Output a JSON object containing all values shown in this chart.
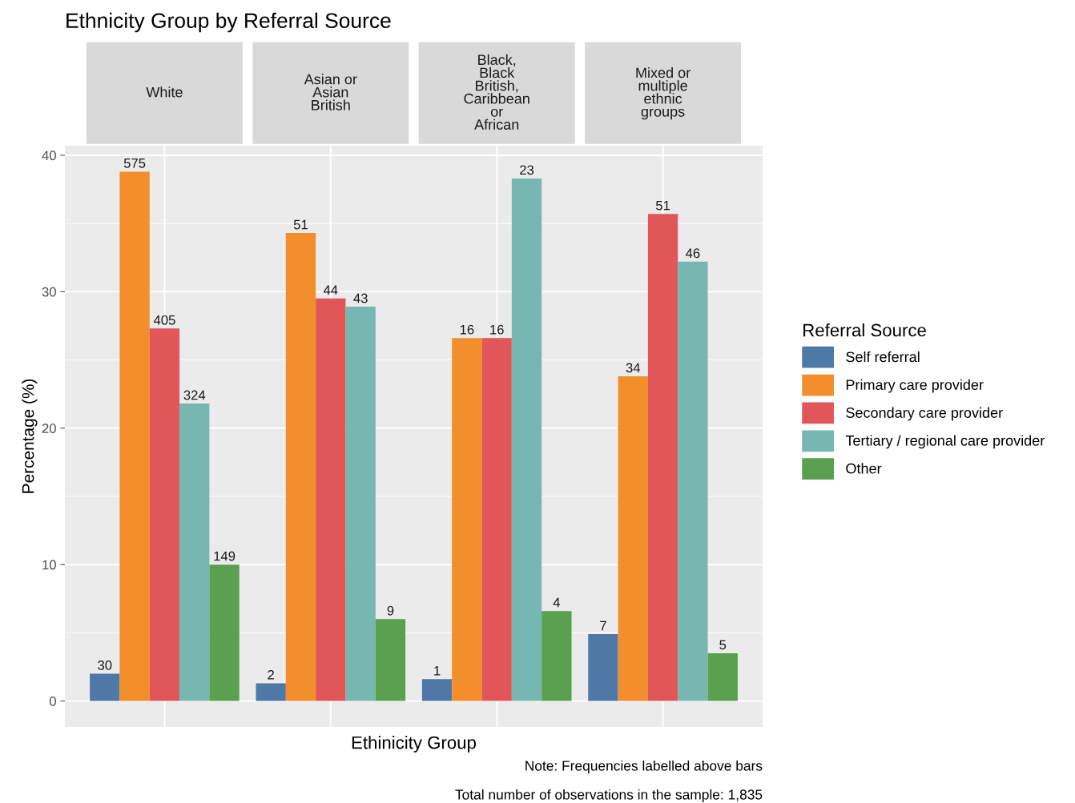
{
  "chart_data": {
    "type": "bar",
    "title": "Ethnicity Group by Referral Source",
    "xlabel": "Ethinicity Group",
    "ylabel": "Percentage (%)",
    "legend_title": "Referral Source",
    "legend": "right",
    "categories": [
      "White",
      "Asian or\nAsian\nBritish",
      "Black,\nBlack\nBritish,\nCaribbean\nor\nAfrican",
      "Mixed or\nmultiple\nethnic\ngroups"
    ],
    "ylim": [
      -1.9,
      40.7
    ],
    "yticks": [
      0,
      10,
      20,
      30,
      40
    ],
    "grid": true,
    "series": [
      {
        "name": "Self referral",
        "color": "#4e79a7",
        "values": [
          2.0,
          1.3,
          1.6,
          4.9
        ]
      },
      {
        "name": "Primary care provider",
        "color": "#f28e2b",
        "values": [
          38.8,
          34.3,
          26.6,
          23.8
        ]
      },
      {
        "name": "Secondary care provider",
        "color": "#e15759",
        "values": [
          27.3,
          29.5,
          26.6,
          35.7
        ]
      },
      {
        "name": "Tertiary / regional care provider",
        "color": "#76b7b2",
        "values": [
          21.8,
          28.9,
          38.3,
          32.2
        ]
      },
      {
        "name": "Other",
        "color": "#59a14f",
        "values": [
          10.0,
          6.0,
          6.6,
          3.5
        ]
      }
    ],
    "annotations": [
      "30",
      "575",
      "405",
      "324",
      "149",
      "2",
      "51",
      "44",
      "43",
      "9",
      "1",
      "16",
      "16",
      "23",
      "4",
      "7",
      "34",
      "51",
      "46",
      "5",
      "Note: Frequencies labelled above bars",
      "Total number of observations in the sample: 1,835"
    ]
  }
}
